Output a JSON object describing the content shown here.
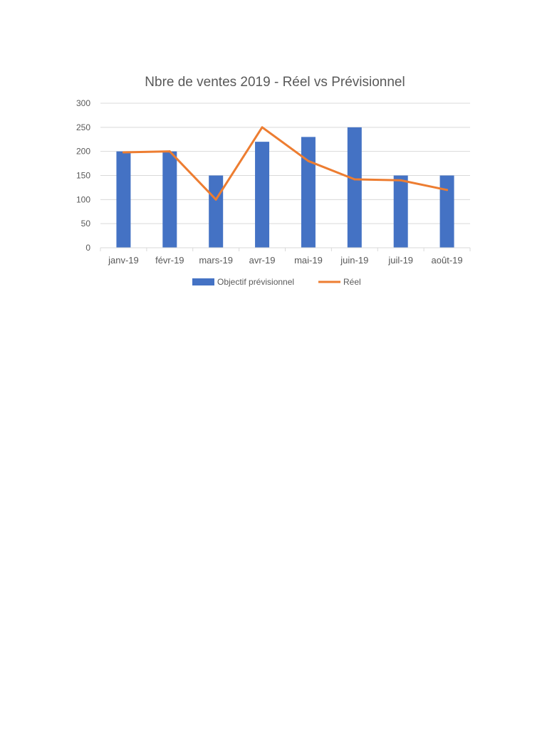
{
  "chart_data": {
    "type": "bar",
    "title": "Nbre de ventes 2019 - Réel vs Prévisionnel",
    "categories": [
      "janv-19",
      "févr-19",
      "mars-19",
      "avr-19",
      "mai-19",
      "juin-19",
      "juil-19",
      "août-19"
    ],
    "series": [
      {
        "name": "Objectif prévisionnel",
        "type": "bar",
        "color": "#4472C4",
        "values": [
          200,
          200,
          150,
          220,
          230,
          250,
          150,
          150
        ]
      },
      {
        "name": "Réel",
        "type": "line",
        "color": "#ED7D31",
        "values": [
          198,
          200,
          100,
          250,
          180,
          142,
          140,
          120
        ]
      }
    ],
    "ylim": [
      0,
      300
    ],
    "yticks": [
      0,
      50,
      100,
      150,
      200,
      250,
      300
    ],
    "grid": true,
    "legend": "bottom"
  }
}
